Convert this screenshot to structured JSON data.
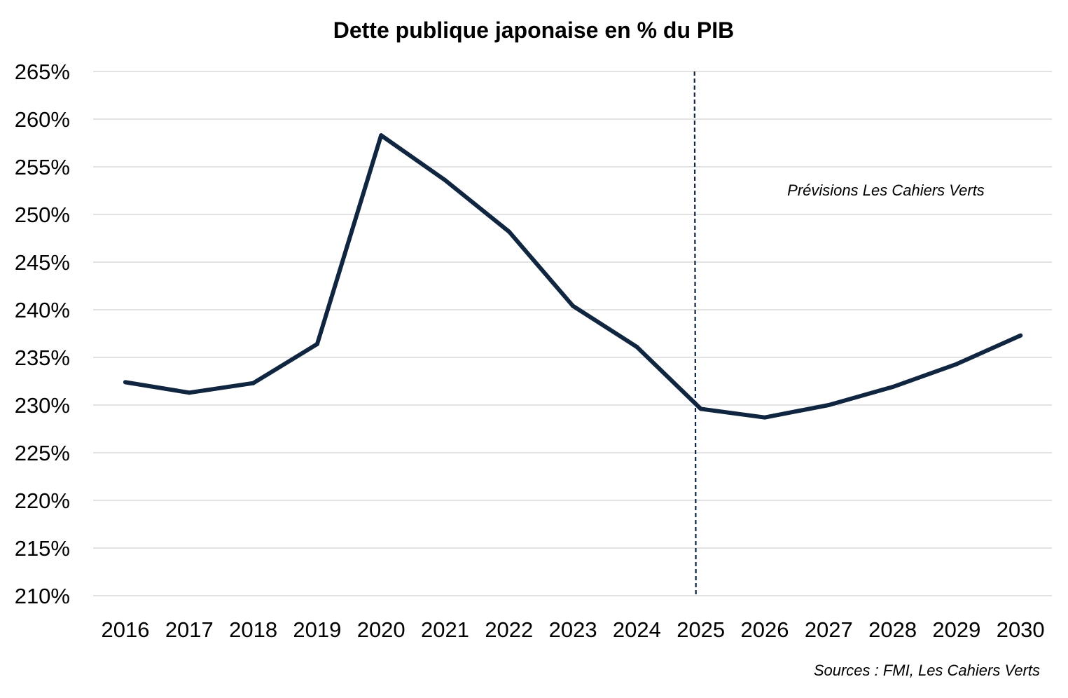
{
  "chart_data": {
    "type": "line",
    "title": "Dette publique japonaise en % du PIB",
    "xlabel": "",
    "ylabel": "",
    "categories": [
      "2016",
      "2017",
      "2018",
      "2019",
      "2020",
      "2021",
      "2022",
      "2023",
      "2024",
      "2025",
      "2026",
      "2027",
      "2028",
      "2029",
      "2030"
    ],
    "series": [
      {
        "name": "Dette publique japonaise en % du PIB",
        "color": "#10253f",
        "values": [
          232.4,
          231.3,
          232.3,
          236.4,
          258.3,
          253.6,
          248.2,
          240.4,
          236.1,
          229.6,
          228.7,
          230.0,
          231.9,
          234.3,
          237.3
        ]
      }
    ],
    "ylim": [
      210,
      265
    ],
    "yticks": [
      265,
      260,
      255,
      250,
      245,
      240,
      235,
      230,
      225,
      220,
      215,
      210
    ],
    "ytick_labels": [
      "265%",
      "260%",
      "255%",
      "250%",
      "245%",
      "240%",
      "235%",
      "230%",
      "225%",
      "220%",
      "215%",
      "210%"
    ],
    "grid": true,
    "forecast_start": "2025",
    "annotation": "Prévisions Les Cahiers Verts",
    "source": "Sources : FMI, Les Cahiers Verts"
  }
}
